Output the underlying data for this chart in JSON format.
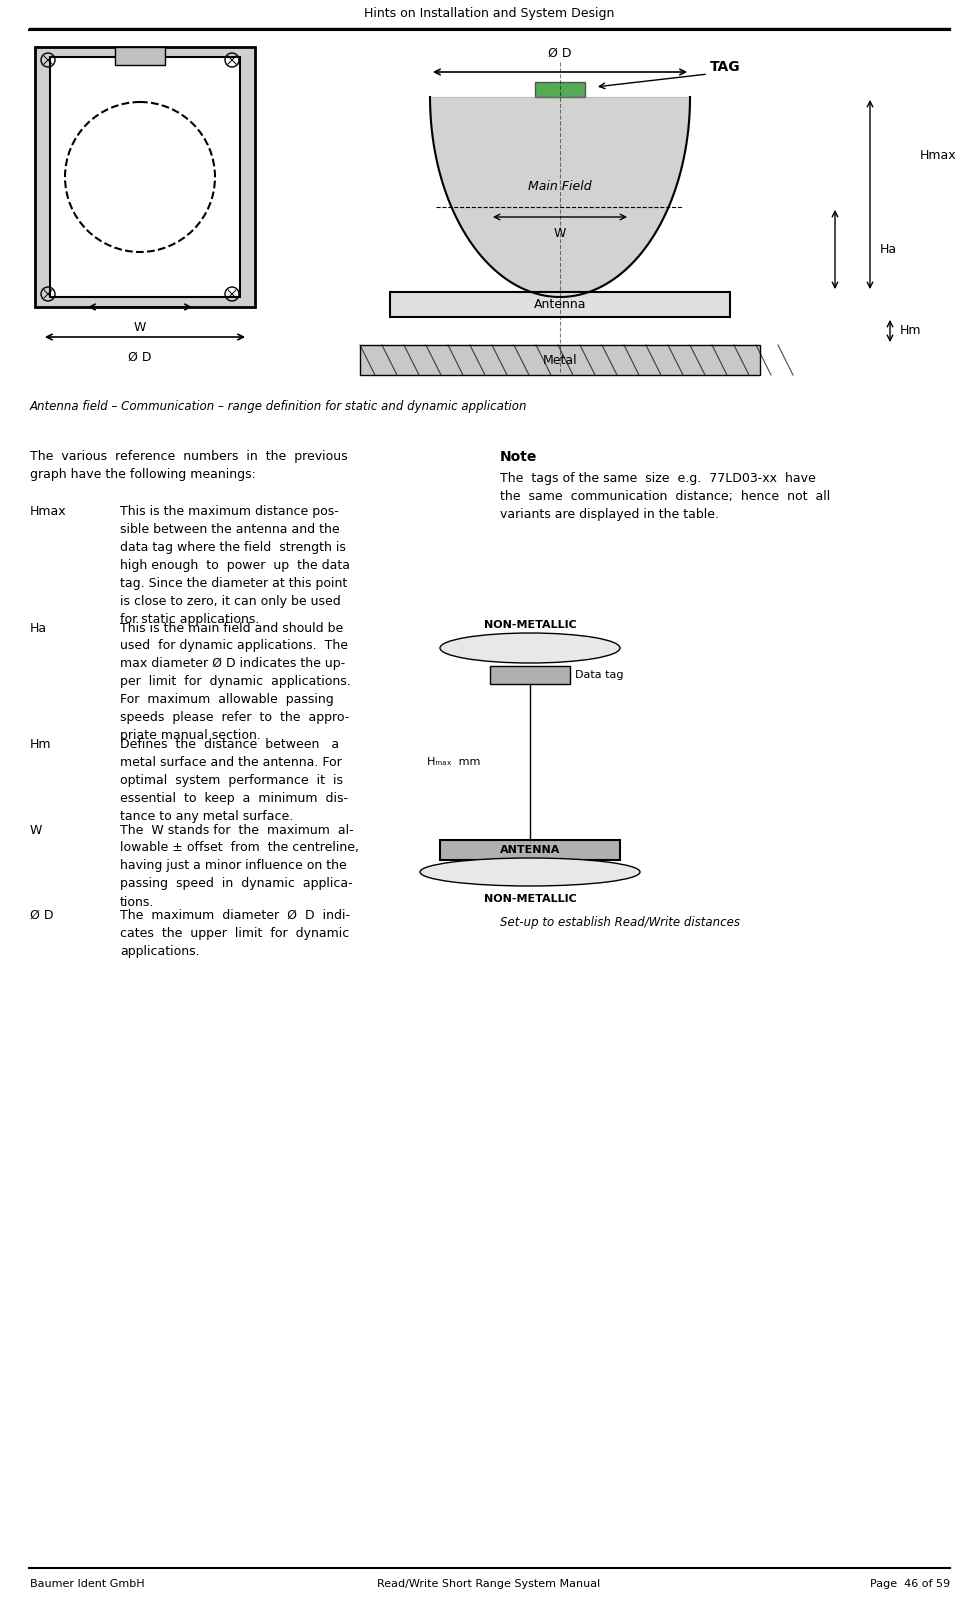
{
  "page_title": "Hints on Installation and System Design",
  "footer_left": "Baumer Ident GmbH",
  "footer_center": "Read/Write Short Range System Manual",
  "footer_right": "Page  46 of 59",
  "caption": "Antenna field – Communication – range definition for static and dynamic application",
  "intro_text": "The  various  reference  numbers  in  the  previous\ngraph have the following meanings:",
  "note_title": "Note",
  "note_text": "The  tags of the same  size  e.g.  77LD03-xx  have\nthe  same  communication  distance;  hence  not  all\nvariants are displayed in the table.",
  "setup_caption": "Set-up to establish Read/Write distances",
  "terms": [
    {
      "term": "Hmax",
      "definition": "This is the maximum distance pos-\nsible between the antenna and the\ndata tag where the field  strength is\nhigh enough  to  power  up  the data\ntag. Since the diameter at this point\nis close to zero, it can only be used\nfor static applications."
    },
    {
      "term": "Ha",
      "definition": "This is the main field and should be\nused  for dynamic applications.  The\nmax diameter Ø D indicates the up-\nper  limit  for  dynamic  applications.\nFor  maximum  allowable  passing\nspeeds  please  refer  to  the  appro-\npriate manual section."
    },
    {
      "term": "Hm",
      "definition": "Defines  the  distance  between   a\nmetal surface and the antenna. For\noptimal  system  performance  it  is\nessential  to  keep  a  minimum  dis-\ntance to any metal surface."
    },
    {
      "term": "W",
      "definition": "The  W stands for  the  maximum  al-\nlowable ± offset  from  the centreline,\nhaving just a minor influence on the\npassing  speed  in  dynamic  applica-\ntions."
    },
    {
      "term": "Ø D",
      "definition": "The  maximum  diameter  Ø  D  indi-\ncates  the  upper  limit  for  dynamic\napplications."
    }
  ],
  "bg_color": "#ffffff",
  "text_color": "#000000",
  "line_color": "#000000"
}
